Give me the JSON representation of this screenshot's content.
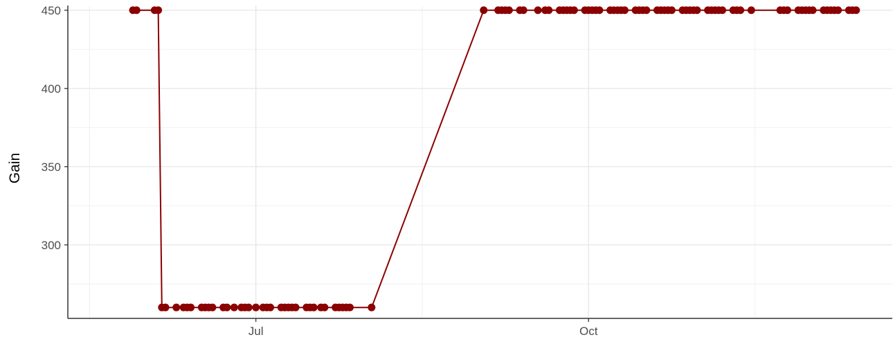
{
  "chart_data": {
    "type": "line",
    "ylabel": "Gain",
    "xlabel": "",
    "x_ticks": [
      "Jul",
      "Oct"
    ],
    "x_tick_dates": [
      "2023-07-01",
      "2023-10-01"
    ],
    "y_ticks": [
      300,
      350,
      400,
      450
    ],
    "xlim": [
      "2023-05-10",
      "2023-12-24"
    ],
    "ylim": [
      253,
      453
    ],
    "grid": true,
    "legend": "none",
    "color": "#8b0000",
    "series": [
      {
        "x": [
          "2023-05-28",
          "2023-05-29",
          "2023-06-03",
          "2023-06-04",
          "2023-06-05",
          "2023-06-06",
          "2023-06-09",
          "2023-06-11",
          "2023-06-12",
          "2023-06-13",
          "2023-06-16",
          "2023-06-17",
          "2023-06-18",
          "2023-06-19",
          "2023-06-22",
          "2023-06-23",
          "2023-06-25",
          "2023-06-27",
          "2023-06-28",
          "2023-06-29",
          "2023-07-01",
          "2023-07-03",
          "2023-07-04",
          "2023-07-05",
          "2023-07-08",
          "2023-07-09",
          "2023-07-10",
          "2023-07-11",
          "2023-07-12",
          "2023-07-15",
          "2023-07-16",
          "2023-07-17",
          "2023-07-19",
          "2023-07-20",
          "2023-07-23",
          "2023-07-24",
          "2023-07-25",
          "2023-07-26",
          "2023-07-27",
          "2023-08-02",
          "2023-09-02",
          "2023-09-06",
          "2023-09-07",
          "2023-09-08",
          "2023-09-09",
          "2023-09-12",
          "2023-09-13",
          "2023-09-17",
          "2023-09-19",
          "2023-09-20",
          "2023-09-23",
          "2023-09-24",
          "2023-09-25",
          "2023-09-26",
          "2023-09-27",
          "2023-09-30",
          "2023-10-01",
          "2023-10-02",
          "2023-10-03",
          "2023-10-04",
          "2023-10-07",
          "2023-10-08",
          "2023-10-09",
          "2023-10-10",
          "2023-10-11",
          "2023-10-14",
          "2023-10-15",
          "2023-10-16",
          "2023-10-17",
          "2023-10-20",
          "2023-10-21",
          "2023-10-22",
          "2023-10-23",
          "2023-10-24",
          "2023-10-27",
          "2023-10-28",
          "2023-10-29",
          "2023-10-30",
          "2023-10-31",
          "2023-11-03",
          "2023-11-04",
          "2023-11-05",
          "2023-11-06",
          "2023-11-07",
          "2023-11-10",
          "2023-11-11",
          "2023-11-12",
          "2023-11-15",
          "2023-11-23",
          "2023-11-24",
          "2023-11-25",
          "2023-11-28",
          "2023-11-29",
          "2023-11-30",
          "2023-12-01",
          "2023-12-02",
          "2023-12-05",
          "2023-12-06",
          "2023-12-07",
          "2023-12-08",
          "2023-12-09",
          "2023-12-12",
          "2023-12-13",
          "2023-12-14"
        ],
        "y": [
          450,
          450,
          450,
          450,
          260,
          260,
          260,
          260,
          260,
          260,
          260,
          260,
          260,
          260,
          260,
          260,
          260,
          260,
          260,
          260,
          260,
          260,
          260,
          260,
          260,
          260,
          260,
          260,
          260,
          260,
          260,
          260,
          260,
          260,
          260,
          260,
          260,
          260,
          260,
          260,
          450,
          450,
          450,
          450,
          450,
          450,
          450,
          450,
          450,
          450,
          450,
          450,
          450,
          450,
          450,
          450,
          450,
          450,
          450,
          450,
          450,
          450,
          450,
          450,
          450,
          450,
          450,
          450,
          450,
          450,
          450,
          450,
          450,
          450,
          450,
          450,
          450,
          450,
          450,
          450,
          450,
          450,
          450,
          450,
          450,
          450,
          450,
          450,
          450,
          450,
          450,
          450,
          450,
          450,
          450,
          450,
          450,
          450,
          450,
          450,
          450,
          450,
          450,
          450
        ]
      }
    ]
  }
}
